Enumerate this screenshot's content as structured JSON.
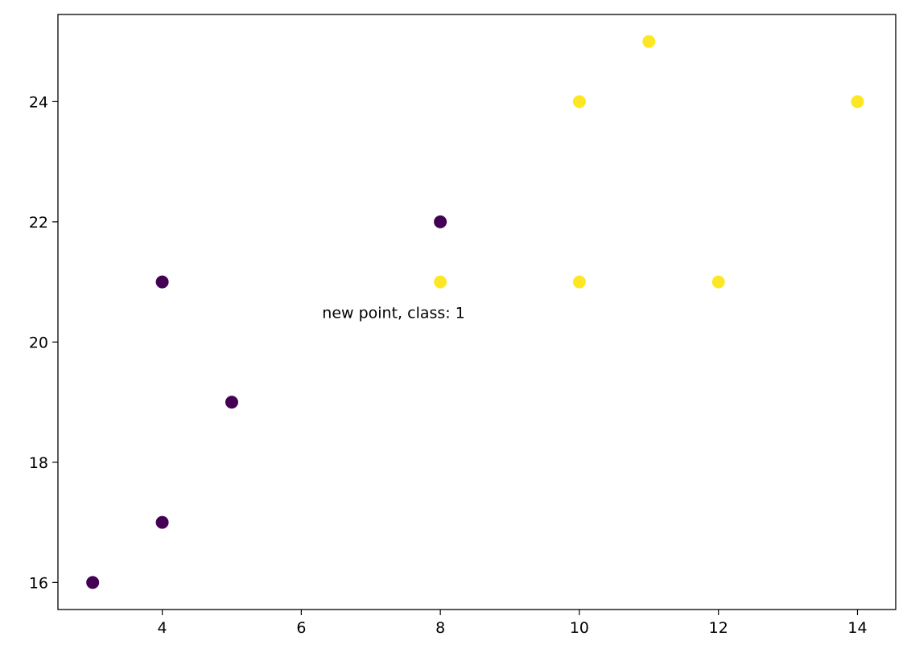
{
  "chart_data": {
    "type": "scatter",
    "title": "",
    "xlabel": "",
    "ylabel": "",
    "xlim": [
      2.5,
      14.55
    ],
    "ylim": [
      15.55,
      25.45
    ],
    "x_ticks": [
      4,
      6,
      8,
      10,
      12,
      14
    ],
    "y_ticks": [
      16,
      18,
      20,
      22,
      24
    ],
    "grid": false,
    "legend": "none",
    "class_colors": {
      "0": "#440154",
      "1": "#fde725"
    },
    "points": [
      {
        "x": 3,
        "y": 16,
        "class": 0
      },
      {
        "x": 4,
        "y": 17,
        "class": 0
      },
      {
        "x": 5,
        "y": 19,
        "class": 0
      },
      {
        "x": 4,
        "y": 21,
        "class": 0
      },
      {
        "x": 8,
        "y": 22,
        "class": 0
      },
      {
        "x": 8,
        "y": 21,
        "class": 1
      },
      {
        "x": 10,
        "y": 21,
        "class": 1
      },
      {
        "x": 12,
        "y": 21,
        "class": 1
      },
      {
        "x": 10,
        "y": 24,
        "class": 1
      },
      {
        "x": 11,
        "y": 25,
        "class": 1
      },
      {
        "x": 14,
        "y": 24,
        "class": 1
      }
    ],
    "annotations": [
      {
        "text": "new point, class: 1",
        "x": 6.3,
        "y": 20.4
      }
    ]
  }
}
